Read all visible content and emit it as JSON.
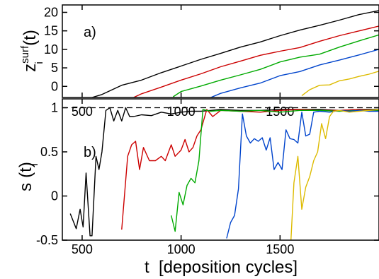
{
  "chart_data": [
    {
      "type": "line",
      "panel_label": "a)",
      "ylabel": {
        "base": "z",
        "sub": "i",
        "sup": "surf",
        "suffix": "(t)"
      },
      "xlim": [
        400,
        2000
      ],
      "ylim": [
        -3,
        22
      ],
      "xticks": [
        500,
        1000,
        1500
      ],
      "yticks": [
        0,
        5,
        10,
        15,
        20
      ],
      "grid": false,
      "series": [
        {
          "color": "#000000",
          "x": [
            550,
            600,
            700,
            800,
            900,
            1000,
            1100,
            1200,
            1300,
            1400,
            1500,
            1600,
            1700,
            1800,
            1900,
            2000
          ],
          "y": [
            -3,
            -2.2,
            0.3,
            1.7,
            3.7,
            5.5,
            7.3,
            8.9,
            10.6,
            12.0,
            13.7,
            15.2,
            16.5,
            17.9,
            19.4,
            20.5
          ]
        },
        {
          "color": "#cc0000",
          "x": [
            760,
            800,
            900,
            1000,
            1100,
            1200,
            1300,
            1400,
            1500,
            1600,
            1700,
            1800,
            1900,
            2000
          ],
          "y": [
            -3,
            -2.0,
            -0.2,
            1.7,
            3.4,
            5.3,
            6.8,
            8.4,
            9.5,
            10.5,
            12.2,
            13.7,
            15.0,
            16.3
          ]
        },
        {
          "color": "#00aa00",
          "x": [
            960,
            1000,
            1100,
            1200,
            1300,
            1400,
            1500,
            1600,
            1700,
            1800,
            1900,
            2000
          ],
          "y": [
            -2.8,
            -1.4,
            0.1,
            1.7,
            3.1,
            4.6,
            6.6,
            7.9,
            8.7,
            10.6,
            12.3,
            13.9
          ]
        },
        {
          "color": "#0044cc",
          "x": [
            1150,
            1200,
            1300,
            1400,
            1500,
            1600,
            1700,
            1800,
            1900,
            2000
          ],
          "y": [
            -3,
            -1.9,
            -0.4,
            0.9,
            2.9,
            4.0,
            5.8,
            7.1,
            8.5,
            10.0
          ]
        },
        {
          "color": "#ddbb00",
          "x": [
            1610,
            1650,
            1700,
            1750,
            1800,
            1850,
            1900,
            1950,
            2000
          ],
          "y": [
            -2.5,
            -0.9,
            0.3,
            0.4,
            1.5,
            2.0,
            2.7,
            3.3,
            4.1
          ]
        }
      ]
    },
    {
      "type": "line",
      "panel_label": "b)",
      "ylabel": {
        "base": "s",
        "sub": "i",
        "suffix": "(t)"
      },
      "xlabel": "t  [deposition cycles]",
      "xlim": [
        400,
        2000
      ],
      "ylim": [
        -0.5,
        1.1
      ],
      "xticks": [
        500,
        1000,
        1500
      ],
      "yticks": [
        -0.5,
        0,
        0.5,
        1
      ],
      "ytick_labels": [
        "-0.5",
        "0",
        "0.5",
        "1"
      ],
      "reference_line": {
        "y": 1,
        "style": "dashed"
      },
      "grid": false,
      "series": [
        {
          "color": "#000000",
          "x": [
            440,
            470,
            490,
            505,
            520,
            540,
            550,
            570,
            585,
            600,
            620,
            640,
            660,
            680,
            700,
            720,
            740,
            760,
            800,
            850,
            900,
            950,
            1000,
            1050,
            1100,
            1150,
            1200,
            1300,
            1400,
            1500,
            1600,
            1700,
            1800,
            1900,
            2000
          ],
          "y": [
            -0.2,
            -0.37,
            -0.15,
            -0.35,
            0.26,
            -0.45,
            -0.45,
            0.45,
            0.3,
            0.5,
            0.97,
            1.0,
            0.85,
            0.97,
            0.85,
            1.0,
            0.9,
            0.9,
            0.92,
            0.91,
            0.95,
            0.93,
            0.95,
            0.96,
            0.96,
            0.97,
            0.98,
            0.97,
            0.97,
            0.98,
            0.98,
            0.98,
            0.97,
            0.98,
            0.98
          ]
        },
        {
          "color": "#cc0000",
          "x": [
            700,
            730,
            750,
            770,
            790,
            810,
            840,
            870,
            900,
            920,
            950,
            970,
            1000,
            1020,
            1040,
            1060,
            1080,
            1100,
            1130,
            1160,
            1200,
            1300,
            1400,
            1500,
            1600,
            1700,
            1800,
            1900,
            2000
          ],
          "y": [
            -0.38,
            0.45,
            0.58,
            0.62,
            0.3,
            0.55,
            0.4,
            0.4,
            0.45,
            0.4,
            0.58,
            0.45,
            0.52,
            0.64,
            0.5,
            0.55,
            0.68,
            0.75,
            0.98,
            0.9,
            0.97,
            0.96,
            0.95,
            0.97,
            0.98,
            0.97,
            0.97,
            0.98,
            0.97
          ]
        },
        {
          "color": "#00aa00",
          "x": [
            950,
            970,
            990,
            1010,
            1030,
            1050,
            1070,
            1090,
            1110,
            1130,
            1150,
            1200,
            1300,
            1400,
            1500,
            1600,
            1700,
            1800,
            1900,
            2000
          ],
          "y": [
            -0.22,
            -0.4,
            0.04,
            -0.1,
            0.12,
            0.2,
            0.15,
            0.4,
            0.98,
            0.97,
            0.96,
            0.97,
            0.96,
            0.97,
            0.95,
            0.97,
            0.97,
            0.96,
            0.97,
            0.97
          ]
        },
        {
          "color": "#0044cc",
          "x": [
            1230,
            1250,
            1270,
            1290,
            1310,
            1330,
            1350,
            1370,
            1390,
            1410,
            1430,
            1450,
            1470,
            1490,
            1510,
            1530,
            1550,
            1570,
            1590,
            1610,
            1630,
            1650,
            1670,
            1700,
            1750,
            1800,
            1850,
            1900,
            1950,
            2000
          ],
          "y": [
            -0.48,
            -0.3,
            -0.22,
            0.08,
            0.93,
            0.68,
            0.6,
            0.65,
            0.62,
            0.66,
            0.52,
            0.66,
            0.3,
            0.38,
            0.3,
            0.75,
            0.65,
            0.64,
            0.6,
            0.95,
            0.68,
            0.7,
            0.95,
            0.96,
            0.95,
            0.97,
            0.96,
            0.97,
            0.96,
            0.96
          ]
        },
        {
          "color": "#ddbb00",
          "x": [
            1555,
            1570,
            1590,
            1610,
            1630,
            1650,
            1670,
            1690,
            1710,
            1730,
            1750,
            1770,
            1800,
            1850,
            1900,
            1950,
            2000
          ],
          "y": [
            -0.5,
            0.15,
            0.45,
            -0.15,
            0.1,
            0.22,
            0.4,
            0.5,
            0.82,
            0.65,
            0.9,
            0.96,
            0.97,
            0.95,
            0.96,
            0.97,
            0.98
          ]
        }
      ]
    }
  ]
}
